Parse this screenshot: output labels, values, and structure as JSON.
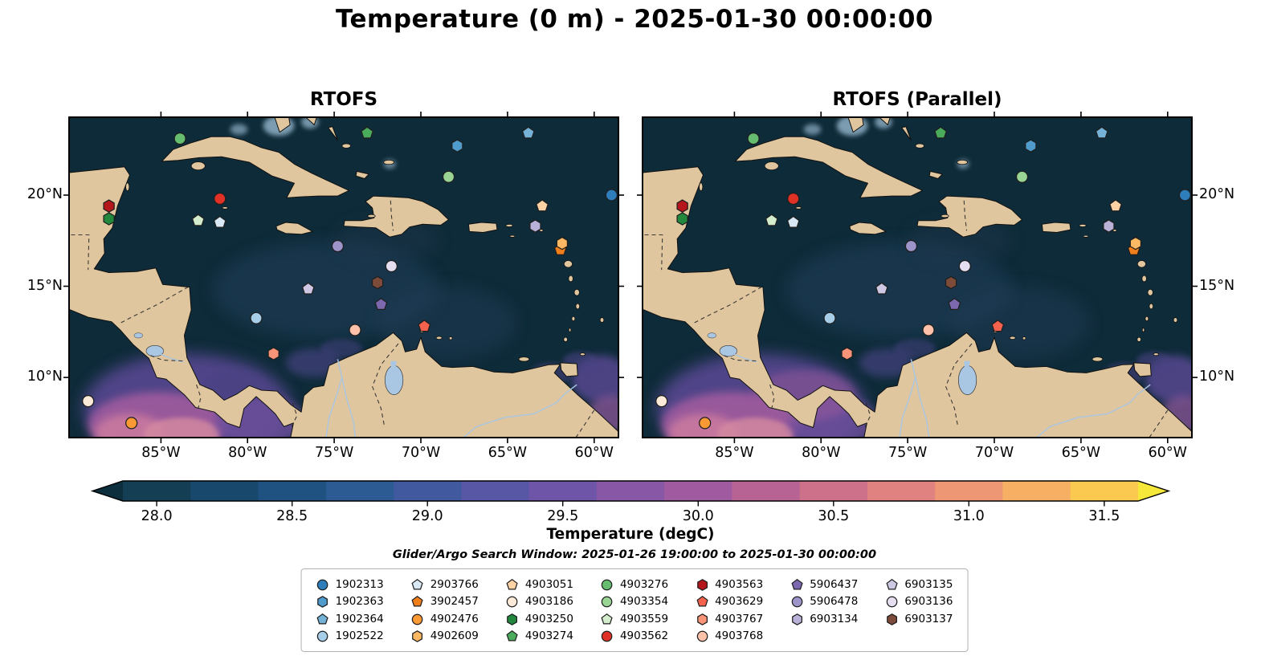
{
  "chart_data": {
    "type": "scatter",
    "title": "Temperature (0 m) - 2025-01-30 00:00:00",
    "panels": [
      "RTOFS",
      "RTOFS (Parallel)"
    ],
    "search_window": "Glider/Argo Search Window: 2025-01-26 19:00:00 to 2025-01-30 00:00:00",
    "lon_range": [
      -90.3,
      -58.6
    ],
    "lat_range": [
      6.7,
      24.27
    ],
    "x_ticks": [
      {
        "value": -85,
        "label": "85°W"
      },
      {
        "value": -80,
        "label": "80°W"
      },
      {
        "value": -75,
        "label": "75°W"
      },
      {
        "value": -70,
        "label": "70°W"
      },
      {
        "value": -65,
        "label": "65°W"
      },
      {
        "value": -60,
        "label": "60°W"
      }
    ],
    "y_ticks": [
      {
        "value": 20,
        "label": "20°N"
      },
      {
        "value": 15,
        "label": "15°N"
      },
      {
        "value": 10,
        "label": "10°N"
      }
    ],
    "colors": {
      "ocean": "#0e2b39",
      "land": "#dfc69e",
      "lake": "#a9c6e3"
    },
    "colorbar": {
      "label": "Temperature (degC)",
      "vmin": 27.875,
      "vmax": 31.625,
      "tick_values": [
        28.0,
        28.5,
        29.0,
        29.5,
        30.0,
        30.5,
        31.0,
        31.5
      ],
      "tick_labels": [
        "28.0",
        "28.5",
        "29.0",
        "29.5",
        "30.0",
        "30.5",
        "31.0",
        "31.5"
      ],
      "under_color": "#0d2e3c",
      "over_color": "#f6e83b",
      "segment_colors": [
        "#143e54",
        "#18486b",
        "#1f5280",
        "#2c5a92",
        "#40599f",
        "#5757a5",
        "#6f55a8",
        "#8857a6",
        "#a05ba0",
        "#b76495",
        "#cc7189",
        "#df8280",
        "#ed9774",
        "#f7af63",
        "#fbc94f"
      ]
    },
    "legend_columns": [
      4,
      4,
      4,
      4,
      4,
      3,
      3
    ],
    "floats": [
      {
        "id": "1902313",
        "shape": "circle",
        "color": "#2e7ebc",
        "lon": -59.0,
        "lat": 20.0
      },
      {
        "id": "1902363",
        "shape": "hexagon",
        "color": "#4f9bcc",
        "lon": -67.9,
        "lat": 22.7
      },
      {
        "id": "1902364",
        "shape": "pentagon",
        "color": "#74b2d8",
        "lon": -63.8,
        "lat": 23.4
      },
      {
        "id": "1902522",
        "shape": "circle",
        "color": "#a6cee8",
        "lon": -79.5,
        "lat": 13.25
      },
      {
        "id": "2903766",
        "shape": "pentagon",
        "color": "#d9e8f5",
        "lon": -81.6,
        "lat": 18.5
      },
      {
        "id": "3902457",
        "shape": "pentagon",
        "color": "#f07f1b",
        "lon": -61.95,
        "lat": 17.0
      },
      {
        "id": "4902476",
        "shape": "circle",
        "color": "#fb9a35",
        "lon": -86.7,
        "lat": 7.5
      },
      {
        "id": "4902609",
        "shape": "hexagon",
        "color": "#fdb863",
        "lon": -61.85,
        "lat": 17.35
      },
      {
        "id": "4903051",
        "shape": "pentagon",
        "color": "#fdd2a5",
        "lon": -63.0,
        "lat": 19.4
      },
      {
        "id": "4903186",
        "shape": "circle",
        "color": "#feead8",
        "lon": -89.2,
        "lat": 8.7
      },
      {
        "id": "4903250",
        "shape": "hexagon",
        "color": "#22883e",
        "lon": -88.0,
        "lat": 18.7
      },
      {
        "id": "4903274",
        "shape": "pentagon",
        "color": "#4bab5c",
        "lon": -73.1,
        "lat": 23.4
      },
      {
        "id": "4903276",
        "shape": "circle",
        "color": "#66bd6f",
        "lon": -83.9,
        "lat": 23.1
      },
      {
        "id": "4903354",
        "shape": "circle",
        "color": "#99d494",
        "lon": -68.4,
        "lat": 21.0
      },
      {
        "id": "4903559",
        "shape": "pentagon",
        "color": "#d3edcc",
        "lon": -82.85,
        "lat": 18.6
      },
      {
        "id": "4903562",
        "shape": "circle",
        "color": "#e03127",
        "lon": -81.6,
        "lat": 19.8
      },
      {
        "id": "4903563",
        "shape": "hexagon",
        "color": "#b5161b",
        "lon": -88.0,
        "lat": 19.4
      },
      {
        "id": "4903629",
        "shape": "pentagon",
        "color": "#f4614d",
        "lon": -69.8,
        "lat": 12.8
      },
      {
        "id": "4903767",
        "shape": "hexagon",
        "color": "#fa9479",
        "lon": -78.5,
        "lat": 11.3
      },
      {
        "id": "4903768",
        "shape": "circle",
        "color": "#fcc1a8",
        "lon": -73.8,
        "lat": 12.6
      },
      {
        "id": "5906437",
        "shape": "pentagon",
        "color": "#7b68af",
        "lon": -72.3,
        "lat": 14.0
      },
      {
        "id": "5906478",
        "shape": "circle",
        "color": "#9d95ca",
        "lon": -74.8,
        "lat": 17.2
      },
      {
        "id": "6903134",
        "shape": "hexagon",
        "color": "#b9b1d8",
        "lon": -63.4,
        "lat": 18.3
      },
      {
        "id": "6903135",
        "shape": "pentagon",
        "color": "#cfc8e4",
        "lon": -76.5,
        "lat": 14.85
      },
      {
        "id": "6903136",
        "shape": "circle",
        "color": "#e4def0",
        "lon": -71.7,
        "lat": 16.1
      },
      {
        "id": "6903137",
        "shape": "hexagon",
        "color": "#7e4a39",
        "lon": -72.5,
        "lat": 15.2
      }
    ]
  }
}
